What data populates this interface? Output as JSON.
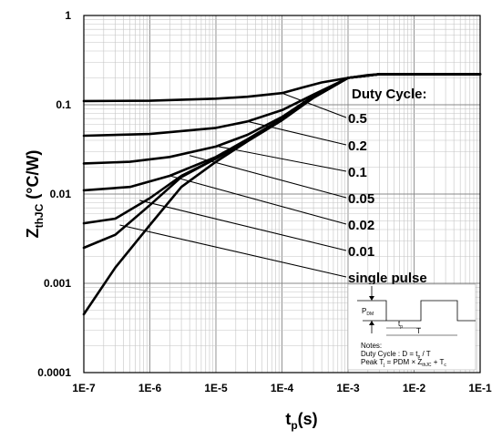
{
  "chart_data": {
    "type": "line",
    "xscale": "log",
    "yscale": "log",
    "xlim": [
      1e-07,
      0.1
    ],
    "ylim": [
      0.0001,
      1
    ],
    "grid": true,
    "xlabel": "t",
    "xlabel_sub": "p",
    "xlabel_unit": "(s)",
    "ylabel": "Z",
    "ylabel_sub": "thJC",
    "ylabel_unit": " (°C/W)",
    "x_tick_labels": [
      "1E-7",
      "1E-6",
      "1E-5",
      "1E-4",
      "1E-3",
      "1E-2",
      "1E-1"
    ],
    "y_tick_labels": [
      "1",
      "0.1",
      "0.01",
      "0.001",
      "0.0001"
    ],
    "legend_title": "Duty Cycle:",
    "series": [
      {
        "name": "0.5",
        "points": [
          [
            1e-07,
            0.11
          ],
          [
            1e-06,
            0.111
          ],
          [
            1e-05,
            0.117
          ],
          [
            3e-05,
            0.123
          ],
          [
            0.0001,
            0.135
          ],
          [
            0.0002,
            0.155
          ],
          [
            0.0004,
            0.178
          ],
          [
            0.001,
            0.2
          ],
          [
            0.002,
            0.215
          ],
          [
            0.003,
            0.22
          ],
          [
            0.1,
            0.22
          ]
        ]
      },
      {
        "name": "0.2",
        "points": [
          [
            1e-07,
            0.045
          ],
          [
            1e-06,
            0.047
          ],
          [
            1e-05,
            0.055
          ],
          [
            3e-05,
            0.065
          ],
          [
            0.0001,
            0.087
          ],
          [
            0.0003,
            0.13
          ],
          [
            0.001,
            0.2
          ],
          [
            0.003,
            0.22
          ],
          [
            0.1,
            0.22
          ]
        ]
      },
      {
        "name": "0.1",
        "points": [
          [
            1e-07,
            0.022
          ],
          [
            5e-07,
            0.023
          ],
          [
            2e-06,
            0.026
          ],
          [
            1e-05,
            0.034
          ],
          [
            3e-05,
            0.046
          ],
          [
            0.0001,
            0.073
          ],
          [
            0.0003,
            0.125
          ],
          [
            0.001,
            0.2
          ],
          [
            0.003,
            0.22
          ],
          [
            0.1,
            0.22
          ]
        ]
      },
      {
        "name": "0.05",
        "points": [
          [
            1e-07,
            0.011
          ],
          [
            5e-07,
            0.012
          ],
          [
            2e-06,
            0.016
          ],
          [
            1e-05,
            0.026
          ],
          [
            3e-05,
            0.041
          ],
          [
            0.0001,
            0.07
          ],
          [
            0.0003,
            0.122
          ],
          [
            0.001,
            0.2
          ],
          [
            0.003,
            0.22
          ],
          [
            0.1,
            0.22
          ]
        ]
      },
      {
        "name": "0.02",
        "points": [
          [
            1e-07,
            0.0047
          ],
          [
            3e-07,
            0.0053
          ],
          [
            1e-06,
            0.009
          ],
          [
            3e-06,
            0.016
          ],
          [
            1e-05,
            0.025
          ],
          [
            3e-05,
            0.04
          ],
          [
            0.0001,
            0.068
          ],
          [
            0.0003,
            0.12
          ],
          [
            0.001,
            0.2
          ],
          [
            0.003,
            0.22
          ],
          [
            0.1,
            0.22
          ]
        ]
      },
      {
        "name": "0.01",
        "points": [
          [
            1e-07,
            0.0025
          ],
          [
            3e-07,
            0.0035
          ],
          [
            1e-06,
            0.0075
          ],
          [
            3e-06,
            0.0155
          ],
          [
            1e-05,
            0.025
          ],
          [
            3e-05,
            0.04
          ],
          [
            0.0001,
            0.068
          ],
          [
            0.0003,
            0.12
          ],
          [
            0.001,
            0.2
          ],
          [
            0.003,
            0.22
          ],
          [
            0.1,
            0.22
          ]
        ]
      },
      {
        "name": "single pulse",
        "points": [
          [
            1e-07,
            0.00045
          ],
          [
            3e-07,
            0.0015
          ],
          [
            1e-06,
            0.0045
          ],
          [
            3e-06,
            0.012
          ],
          [
            1e-05,
            0.023
          ],
          [
            3e-05,
            0.039
          ],
          [
            0.0001,
            0.067
          ],
          [
            0.0003,
            0.12
          ],
          [
            0.001,
            0.2
          ],
          [
            0.003,
            0.22
          ],
          [
            0.1,
            0.22
          ]
        ]
      }
    ],
    "leaders": [
      {
        "from": [
          0.0001,
          0.135
        ],
        "to_label": "0.5"
      },
      {
        "from": [
          3e-05,
          0.065
        ],
        "to_label": "0.2"
      },
      {
        "from": [
          1.1e-05,
          0.034
        ],
        "to_label": "0.1"
      },
      {
        "from": [
          4e-06,
          0.027
        ],
        "to_label": "0.05"
      },
      {
        "from": [
          2e-06,
          0.016
        ],
        "to_label": "0.02"
      },
      {
        "from": [
          7e-07,
          0.0085
        ],
        "to_label": "0.01"
      },
      {
        "from": [
          3.5e-07,
          0.0045
        ],
        "to_label": "single pulse"
      }
    ]
  },
  "inset": {
    "pdm_label": "P",
    "pdm_sub": "DM",
    "tp_label": "t",
    "tp_sub": "p",
    "t_label": "T",
    "notes_title": "Notes:",
    "note1_a": "Duty Cycle : D = t",
    "note1_sub": "p",
    "note1_b": " / T",
    "note2_a": "Peak T",
    "note2_sub1": "j",
    "note2_b": " = PDM × Z",
    "note2_sub2": "thJC",
    "note2_c": " + T",
    "note2_sub3": "c"
  }
}
